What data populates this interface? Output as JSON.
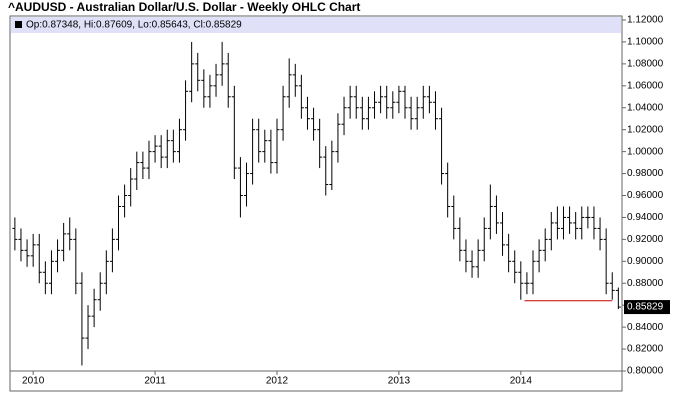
{
  "chart_data": {
    "type": "ohlc",
    "title": "^AUDUSD - Australian Dollar/U.S. Dollar - Weekly OHLC Chart",
    "legend_text": "Op:0.87348, Hi:0.87609, Lo:0.85643, Cl:0.85829",
    "color": "#000000",
    "xlim": [
      2009.81,
      2014.83
    ],
    "xticks": [
      2010,
      2011,
      2012,
      2013,
      2014
    ],
    "ylim": [
      0.8,
      1.12
    ],
    "yticks": [
      {
        "value": 0.8,
        "label": "0.80000"
      },
      {
        "value": 0.82,
        "label": "0.82000"
      },
      {
        "value": 0.84,
        "label": "0.84000"
      },
      {
        "value": 0.86,
        "label": "0.86000"
      },
      {
        "value": 0.88,
        "label": "0.88000"
      },
      {
        "value": 0.9,
        "label": "0.90000"
      },
      {
        "value": 0.92,
        "label": "0.92000"
      },
      {
        "value": 0.94,
        "label": "0.94000"
      },
      {
        "value": 0.96,
        "label": "0.96000"
      },
      {
        "value": 0.98,
        "label": "0.98000"
      },
      {
        "value": 1.0,
        "label": "1.00000"
      },
      {
        "value": 1.02,
        "label": "1.02000"
      },
      {
        "value": 1.04,
        "label": "1.04000"
      },
      {
        "value": 1.06,
        "label": "1.06000"
      },
      {
        "value": 1.08,
        "label": "1.08000"
      },
      {
        "value": 1.1,
        "label": "1.10000"
      },
      {
        "value": 1.12,
        "label": "1.12000"
      }
    ],
    "support_line": {
      "value": 0.864,
      "x": [
        2014.03,
        2014.75
      ],
      "color": "#cc0000"
    },
    "x": [
      2009.85,
      2009.9,
      2009.95,
      2010,
      2010.05,
      2010.1,
      2010.15,
      2010.2,
      2010.25,
      2010.3,
      2010.35,
      2010.4,
      2010.45,
      2010.5,
      2010.55,
      2010.6,
      2010.65,
      2010.7,
      2010.75,
      2010.8,
      2010.85,
      2010.9,
      2010.95,
      2011,
      2011.05,
      2011.1,
      2011.15,
      2011.2,
      2011.25,
      2011.3,
      2011.35,
      2011.4,
      2011.45,
      2011.5,
      2011.55,
      2011.6,
      2011.65,
      2011.7,
      2011.75,
      2011.8,
      2011.85,
      2011.9,
      2011.95,
      2012,
      2012.05,
      2012.1,
      2012.15,
      2012.2,
      2012.25,
      2012.3,
      2012.35,
      2012.4,
      2012.45,
      2012.5,
      2012.55,
      2012.6,
      2012.65,
      2012.7,
      2012.75,
      2012.8,
      2012.85,
      2012.9,
      2012.95,
      2013,
      2013.05,
      2013.1,
      2013.15,
      2013.2,
      2013.25,
      2013.3,
      2013.35,
      2013.4,
      2013.45,
      2013.5,
      2013.55,
      2013.6,
      2013.65,
      2013.7,
      2013.75,
      2013.8,
      2013.85,
      2013.9,
      2013.95,
      2014,
      2014.05,
      2014.1,
      2014.15,
      2014.2,
      2014.25,
      2014.3,
      2014.35,
      2014.4,
      2014.45,
      2014.5,
      2014.55,
      2014.6,
      2014.65,
      2014.7,
      2014.75,
      2014.8
    ],
    "open": [
      0.93,
      0.92,
      0.91,
      0.905,
      0.915,
      0.89,
      0.88,
      0.9,
      0.91,
      0.925,
      0.92,
      0.88,
      0.83,
      0.85,
      0.865,
      0.88,
      0.9,
      0.92,
      0.95,
      0.96,
      0.975,
      0.99,
      0.985,
      1.0,
      1.005,
      0.995,
      1.01,
      1.0,
      1.02,
      1.055,
      1.08,
      1.065,
      1.05,
      1.06,
      1.07,
      1.08,
      1.05,
      0.985,
      0.96,
      0.98,
      1.02,
      1.0,
      1.01,
      0.99,
      1.02,
      1.05,
      1.07,
      1.06,
      1.04,
      1.03,
      1.02,
      0.995,
      0.97,
      1.0,
      1.025,
      1.04,
      1.05,
      1.04,
      1.03,
      1.04,
      1.045,
      1.05,
      1.04,
      1.045,
      1.055,
      1.04,
      1.03,
      1.04,
      1.05,
      1.045,
      1.03,
      0.98,
      0.95,
      0.93,
      0.91,
      0.9,
      0.895,
      0.91,
      0.93,
      0.95,
      0.935,
      0.915,
      0.9,
      0.89,
      0.88,
      0.88,
      0.9,
      0.91,
      0.92,
      0.935,
      0.93,
      0.94,
      0.935,
      0.93,
      0.94,
      0.94,
      0.93,
      0.92,
      0.88,
      0.87348
    ],
    "high": [
      0.94,
      0.93,
      0.92,
      0.925,
      0.925,
      0.9,
      0.91,
      0.92,
      0.935,
      0.94,
      0.93,
      0.89,
      0.86,
      0.875,
      0.89,
      0.91,
      0.93,
      0.96,
      0.97,
      0.985,
      1.0,
      1.0,
      1.01,
      1.015,
      1.015,
      1.02,
      1.02,
      1.03,
      1.065,
      1.1,
      1.09,
      1.075,
      1.07,
      1.08,
      1.1,
      1.09,
      1.06,
      0.995,
      0.99,
      1.03,
      1.03,
      1.02,
      1.02,
      1.03,
      1.06,
      1.085,
      1.08,
      1.07,
      1.05,
      1.04,
      1.03,
      1.005,
      1.01,
      1.035,
      1.05,
      1.06,
      1.06,
      1.05,
      1.05,
      1.055,
      1.06,
      1.06,
      1.055,
      1.06,
      1.06,
      1.05,
      1.05,
      1.06,
      1.06,
      1.055,
      1.04,
      0.99,
      0.96,
      0.94,
      0.92,
      0.91,
      0.92,
      0.94,
      0.97,
      0.96,
      0.945,
      0.925,
      0.91,
      0.9,
      0.89,
      0.91,
      0.92,
      0.93,
      0.945,
      0.95,
      0.95,
      0.95,
      0.945,
      0.95,
      0.95,
      0.95,
      0.94,
      0.93,
      0.89,
      0.87609
    ],
    "low": [
      0.91,
      0.9,
      0.895,
      0.895,
      0.88,
      0.87,
      0.87,
      0.89,
      0.9,
      0.91,
      0.87,
      0.805,
      0.82,
      0.84,
      0.855,
      0.87,
      0.89,
      0.91,
      0.94,
      0.95,
      0.965,
      0.975,
      0.975,
      0.99,
      0.985,
      0.985,
      0.99,
      0.99,
      1.01,
      1.045,
      1.055,
      1.04,
      1.04,
      1.05,
      1.06,
      1.04,
      0.975,
      0.94,
      0.95,
      0.97,
      0.99,
      0.99,
      0.98,
      0.98,
      1.01,
      1.04,
      1.05,
      1.03,
      1.02,
      1.01,
      0.985,
      0.96,
      0.965,
      0.99,
      1.015,
      1.03,
      1.03,
      1.02,
      1.02,
      1.03,
      1.035,
      1.03,
      1.03,
      1.035,
      1.03,
      1.02,
      1.02,
      1.03,
      1.035,
      1.02,
      0.97,
      0.94,
      0.92,
      0.9,
      0.89,
      0.885,
      0.885,
      0.9,
      0.92,
      0.925,
      0.905,
      0.89,
      0.88,
      0.865,
      0.87,
      0.87,
      0.89,
      0.9,
      0.91,
      0.92,
      0.92,
      0.925,
      0.92,
      0.92,
      0.93,
      0.92,
      0.91,
      0.87,
      0.865,
      0.85643
    ],
    "close": [
      0.92,
      0.91,
      0.905,
      0.915,
      0.89,
      0.88,
      0.9,
      0.91,
      0.925,
      0.92,
      0.88,
      0.83,
      0.85,
      0.865,
      0.88,
      0.9,
      0.92,
      0.95,
      0.96,
      0.975,
      0.99,
      0.985,
      1.0,
      1.005,
      0.995,
      1.01,
      1.0,
      1.02,
      1.055,
      1.08,
      1.065,
      1.05,
      1.06,
      1.07,
      1.08,
      1.05,
      0.985,
      0.96,
      0.98,
      1.02,
      1.0,
      1.01,
      0.99,
      1.02,
      1.05,
      1.07,
      1.06,
      1.04,
      1.03,
      1.02,
      0.995,
      0.97,
      1.0,
      1.025,
      1.04,
      1.05,
      1.04,
      1.03,
      1.04,
      1.045,
      1.05,
      1.04,
      1.045,
      1.055,
      1.04,
      1.03,
      1.04,
      1.05,
      1.045,
      1.03,
      0.98,
      0.95,
      0.93,
      0.91,
      0.9,
      0.895,
      0.91,
      0.93,
      0.95,
      0.935,
      0.915,
      0.9,
      0.89,
      0.88,
      0.88,
      0.9,
      0.91,
      0.92,
      0.935,
      0.93,
      0.94,
      0.935,
      0.93,
      0.94,
      0.94,
      0.93,
      0.92,
      0.88,
      0.87348,
      0.85829
    ]
  }
}
